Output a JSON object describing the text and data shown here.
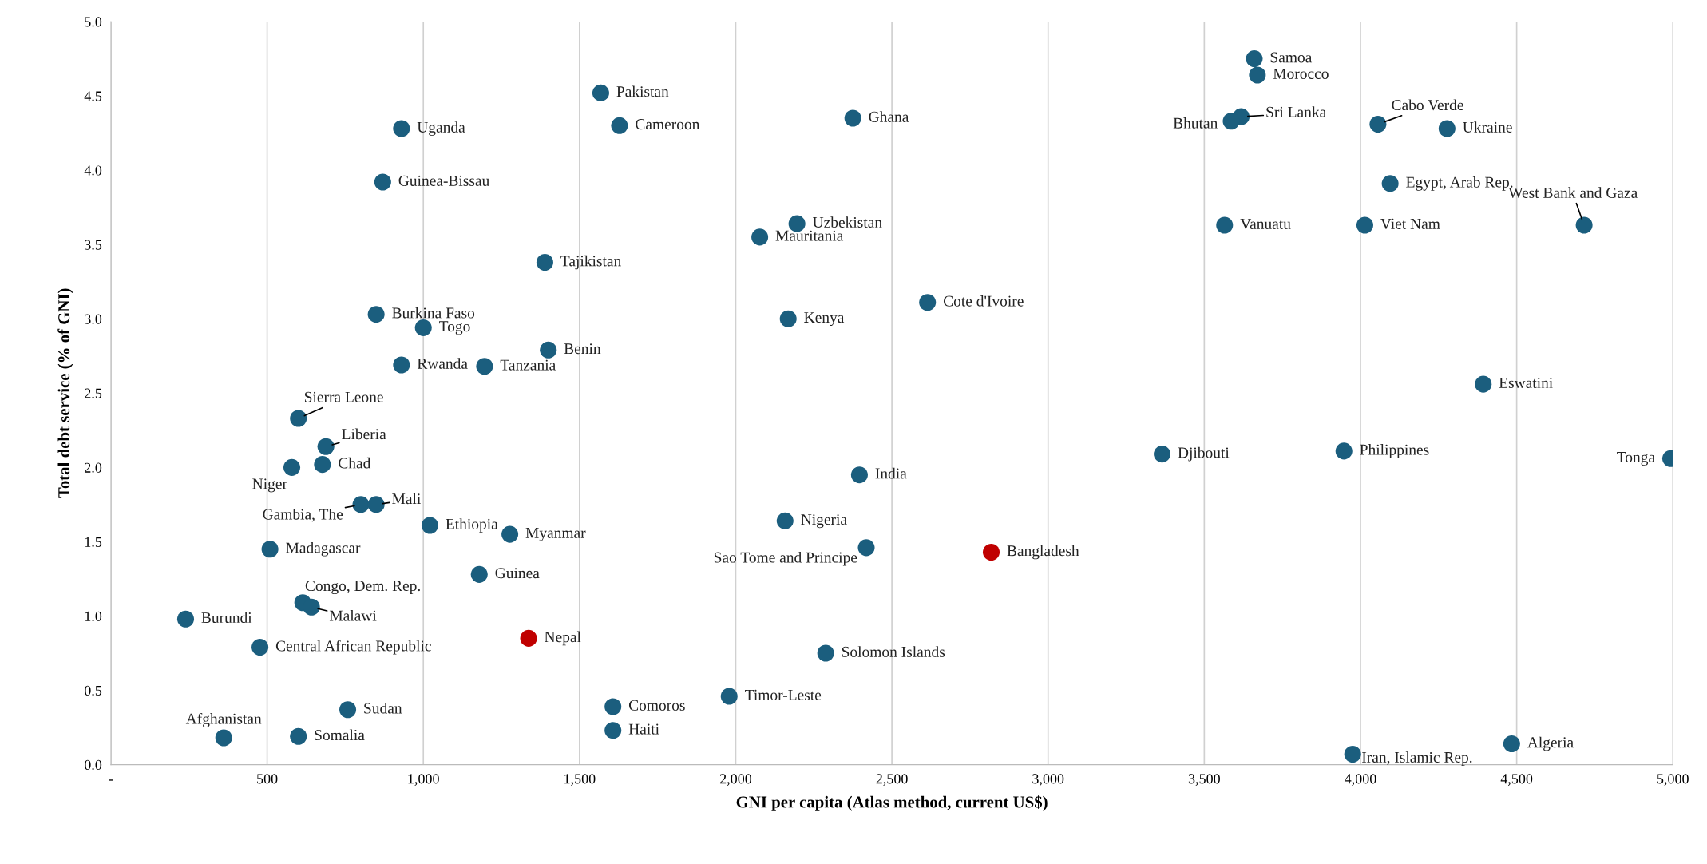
{
  "chart_data": {
    "type": "scatter",
    "xlabel": "GNI per capita (Atlas method, current US$)",
    "ylabel": "Total debt service (% of GNI)",
    "x": [
      3660,
      3670,
      3618,
      3586,
      4056,
      4277,
      1568,
      930,
      1628,
      2375,
      870,
      4095,
      2196,
      3565,
      4014,
      4716,
      2077,
      1389,
      2614,
      849,
      2168,
      1000,
      1400,
      930,
      1196,
      4393,
      600,
      688,
      677,
      579,
      3365,
      3947,
      4993,
      2396,
      800,
      849,
      1021,
      1277,
      2158,
      2418,
      2818,
      509,
      1179,
      614,
      642,
      239,
      477,
      1337,
      2288,
      1979,
      758,
      1607,
      1607,
      361,
      600,
      3975,
      4484
    ],
    "values": [
      4.75,
      4.64,
      4.36,
      4.33,
      4.31,
      4.28,
      4.52,
      4.28,
      4.3,
      4.35,
      3.92,
      3.91,
      3.64,
      3.63,
      3.63,
      3.63,
      3.55,
      3.38,
      3.11,
      3.03,
      3.0,
      2.94,
      2.79,
      2.69,
      2.68,
      2.56,
      2.33,
      2.14,
      2.02,
      2.0,
      2.09,
      2.11,
      2.06,
      1.95,
      1.75,
      1.75,
      1.61,
      1.55,
      1.64,
      1.46,
      1.43,
      1.45,
      1.28,
      1.09,
      1.06,
      0.98,
      0.79,
      0.85,
      0.75,
      0.46,
      0.37,
      0.39,
      0.23,
      0.18,
      0.19,
      0.07,
      0.14
    ],
    "colors": [
      "#1b5e7e",
      "#1b5e7e",
      "#1b5e7e",
      "#1b5e7e",
      "#1b5e7e",
      "#1b5e7e",
      "#1b5e7e",
      "#1b5e7e",
      "#1b5e7e",
      "#1b5e7e",
      "#1b5e7e",
      "#1b5e7e",
      "#1b5e7e",
      "#1b5e7e",
      "#1b5e7e",
      "#1b5e7e",
      "#1b5e7e",
      "#1b5e7e",
      "#1b5e7e",
      "#1b5e7e",
      "#1b5e7e",
      "#1b5e7e",
      "#1b5e7e",
      "#1b5e7e",
      "#1b5e7e",
      "#1b5e7e",
      "#1b5e7e",
      "#1b5e7e",
      "#1b5e7e",
      "#1b5e7e",
      "#1b5e7e",
      "#1b5e7e",
      "#1b5e7e",
      "#1b5e7e",
      "#1b5e7e",
      "#1b5e7e",
      "#1b5e7e",
      "#1b5e7e",
      "#1b5e7e",
      "#1b5e7e",
      "#c00000",
      "#1b5e7e",
      "#1b5e7e",
      "#1b5e7e",
      "#1b5e7e",
      "#1b5e7e",
      "#1b5e7e",
      "#c00000",
      "#1b5e7e",
      "#1b5e7e",
      "#1b5e7e",
      "#1b5e7e",
      "#1b5e7e",
      "#1b5e7e",
      "#1b5e7e",
      "#1b5e7e",
      "#1b5e7e"
    ],
    "annotations": [
      {
        "text": "Samoa",
        "x": 3660,
        "y": 4.75
      },
      {
        "text": "Morocco",
        "x": 3670,
        "y": 4.64
      },
      {
        "text": "Sri Lanka",
        "x": 3618,
        "y": 4.36
      },
      {
        "text": "Bhutan",
        "x": 3586,
        "y": 4.33
      },
      {
        "text": "Cabo Verde",
        "x": 4056,
        "y": 4.31
      },
      {
        "text": "Ukraine",
        "x": 4277,
        "y": 4.28
      },
      {
        "text": "Pakistan",
        "x": 1568,
        "y": 4.52
      },
      {
        "text": "Uganda",
        "x": 930,
        "y": 4.28
      },
      {
        "text": "Cameroon",
        "x": 1628,
        "y": 4.3
      },
      {
        "text": "Ghana",
        "x": 2375,
        "y": 4.35
      },
      {
        "text": "Guinea-Bissau",
        "x": 870,
        "y": 3.92
      },
      {
        "text": "Egypt, Arab Rep.",
        "x": 4095,
        "y": 3.91
      },
      {
        "text": "Uzbekistan",
        "x": 2196,
        "y": 3.64
      },
      {
        "text": "Vanuatu",
        "x": 3565,
        "y": 3.63
      },
      {
        "text": "Viet Nam",
        "x": 4014,
        "y": 3.63
      },
      {
        "text": "West Bank and Gaza",
        "x": 4716,
        "y": 3.63
      },
      {
        "text": "Mauritania",
        "x": 2077,
        "y": 3.55
      },
      {
        "text": "Tajikistan",
        "x": 1389,
        "y": 3.38
      },
      {
        "text": "Cote d'Ivoire",
        "x": 2614,
        "y": 3.11
      },
      {
        "text": "Burkina Faso",
        "x": 849,
        "y": 3.03
      },
      {
        "text": "Kenya",
        "x": 2168,
        "y": 3.0
      },
      {
        "text": "Togo",
        "x": 1000,
        "y": 2.94
      },
      {
        "text": "Benin",
        "x": 1400,
        "y": 2.79
      },
      {
        "text": "Rwanda",
        "x": 930,
        "y": 2.69
      },
      {
        "text": "Tanzania",
        "x": 1196,
        "y": 2.68
      },
      {
        "text": "Eswatini",
        "x": 4393,
        "y": 2.56
      },
      {
        "text": "Sierra Leone",
        "x": 600,
        "y": 2.33
      },
      {
        "text": "Liberia",
        "x": 688,
        "y": 2.14
      },
      {
        "text": "Chad",
        "x": 677,
        "y": 2.02
      },
      {
        "text": "Niger",
        "x": 579,
        "y": 2.0
      },
      {
        "text": "Djibouti",
        "x": 3365,
        "y": 2.09
      },
      {
        "text": "Philippines",
        "x": 3947,
        "y": 2.11
      },
      {
        "text": "Tonga",
        "x": 4993,
        "y": 2.06
      },
      {
        "text": "India",
        "x": 2396,
        "y": 1.95
      },
      {
        "text": "Gambia, The",
        "x": 800,
        "y": 1.75
      },
      {
        "text": "Mali",
        "x": 849,
        "y": 1.75
      },
      {
        "text": "Ethiopia",
        "x": 1021,
        "y": 1.61
      },
      {
        "text": "Myanmar",
        "x": 1277,
        "y": 1.55
      },
      {
        "text": "Nigeria",
        "x": 2158,
        "y": 1.64
      },
      {
        "text": "Sao Tome and Principe",
        "x": 2418,
        "y": 1.46
      },
      {
        "text": "Bangladesh",
        "x": 2818,
        "y": 1.43
      },
      {
        "text": "Madagascar",
        "x": 509,
        "y": 1.45
      },
      {
        "text": "Guinea",
        "x": 1179,
        "y": 1.28
      },
      {
        "text": "Congo, Dem. Rep.",
        "x": 614,
        "y": 1.09
      },
      {
        "text": "Malawi",
        "x": 642,
        "y": 1.06
      },
      {
        "text": "Burundi",
        "x": 239,
        "y": 0.98
      },
      {
        "text": "Central African Republic",
        "x": 477,
        "y": 0.79
      },
      {
        "text": "Nepal",
        "x": 1337,
        "y": 0.85
      },
      {
        "text": "Solomon Islands",
        "x": 2288,
        "y": 0.75
      },
      {
        "text": "Timor-Leste",
        "x": 1979,
        "y": 0.46
      },
      {
        "text": "Sudan",
        "x": 758,
        "y": 0.37
      },
      {
        "text": "Comoros",
        "x": 1607,
        "y": 0.39
      },
      {
        "text": "Haiti",
        "x": 1607,
        "y": 0.23
      },
      {
        "text": "Afghanistan",
        "x": 361,
        "y": 0.18
      },
      {
        "text": "Somalia",
        "x": 600,
        "y": 0.19
      },
      {
        "text": "Iran, Islamic Rep.",
        "x": 3975,
        "y": 0.07
      },
      {
        "text": "Algeria",
        "x": 4484,
        "y": 0.14
      }
    ],
    "xlim": [
      0,
      5000
    ],
    "xticks": [
      {
        "value": 0,
        "label": "-"
      },
      500,
      {
        "value": 1000,
        "label": "1,000"
      },
      {
        "value": 1500,
        "label": "1,500"
      },
      {
        "value": 2000,
        "label": "2,000"
      },
      {
        "value": 2500,
        "label": "2,500"
      },
      {
        "value": 3000,
        "label": "3,000"
      },
      {
        "value": 3500,
        "label": "3,500"
      },
      {
        "value": 4000,
        "label": "4,000"
      },
      {
        "value": 4500,
        "label": "4,500"
      },
      {
        "value": 5000,
        "label": "5,000"
      }
    ],
    "ylim": [
      0,
      5
    ],
    "yticks": [
      {
        "value": 0,
        "label": "0.0"
      },
      0.5,
      {
        "value": 1,
        "label": "1.0"
      },
      1.5,
      {
        "value": 2,
        "label": "2.0"
      },
      2.5,
      {
        "value": 3,
        "label": "3.0"
      },
      3.5,
      {
        "value": 4,
        "label": "4.0"
      },
      4.5,
      {
        "value": 5,
        "label": "5.0"
      }
    ],
    "grid": "x",
    "marker": "circle"
  }
}
